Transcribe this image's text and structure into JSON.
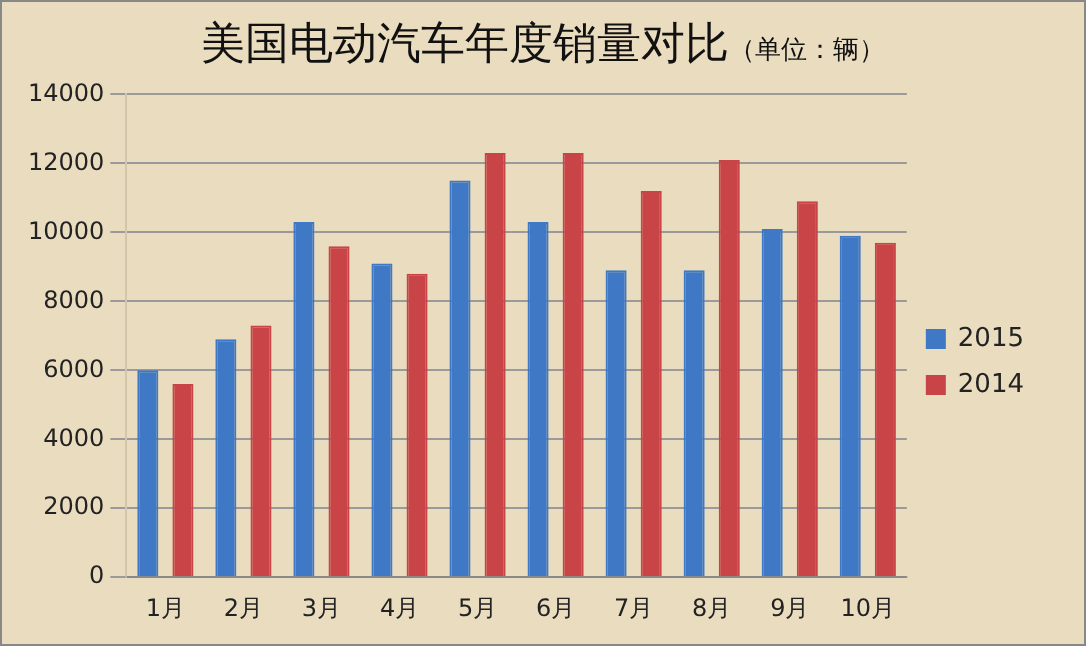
{
  "chart_data": {
    "type": "bar",
    "title": "美国电动汽车年度销量对比",
    "subtitle": "（单位：辆）",
    "categories": [
      "1月",
      "2月",
      "3月",
      "4月",
      "5月",
      "6月",
      "7月",
      "8月",
      "9月",
      "10月"
    ],
    "series": [
      {
        "name": "2015",
        "color": "#3f78c4",
        "values": [
          6000,
          6900,
          10300,
          9100,
          11500,
          10300,
          8900,
          8900,
          10100,
          9900
        ]
      },
      {
        "name": "2014",
        "color": "#c84446",
        "values": [
          5600,
          7300,
          9600,
          8800,
          12300,
          12300,
          11200,
          12100,
          10900,
          9700
        ]
      }
    ],
    "ylim": [
      0,
      14000
    ],
    "yticks": [
      0,
      2000,
      4000,
      6000,
      8000,
      10000,
      12000,
      14000
    ],
    "grid": "y",
    "legend": "right"
  }
}
